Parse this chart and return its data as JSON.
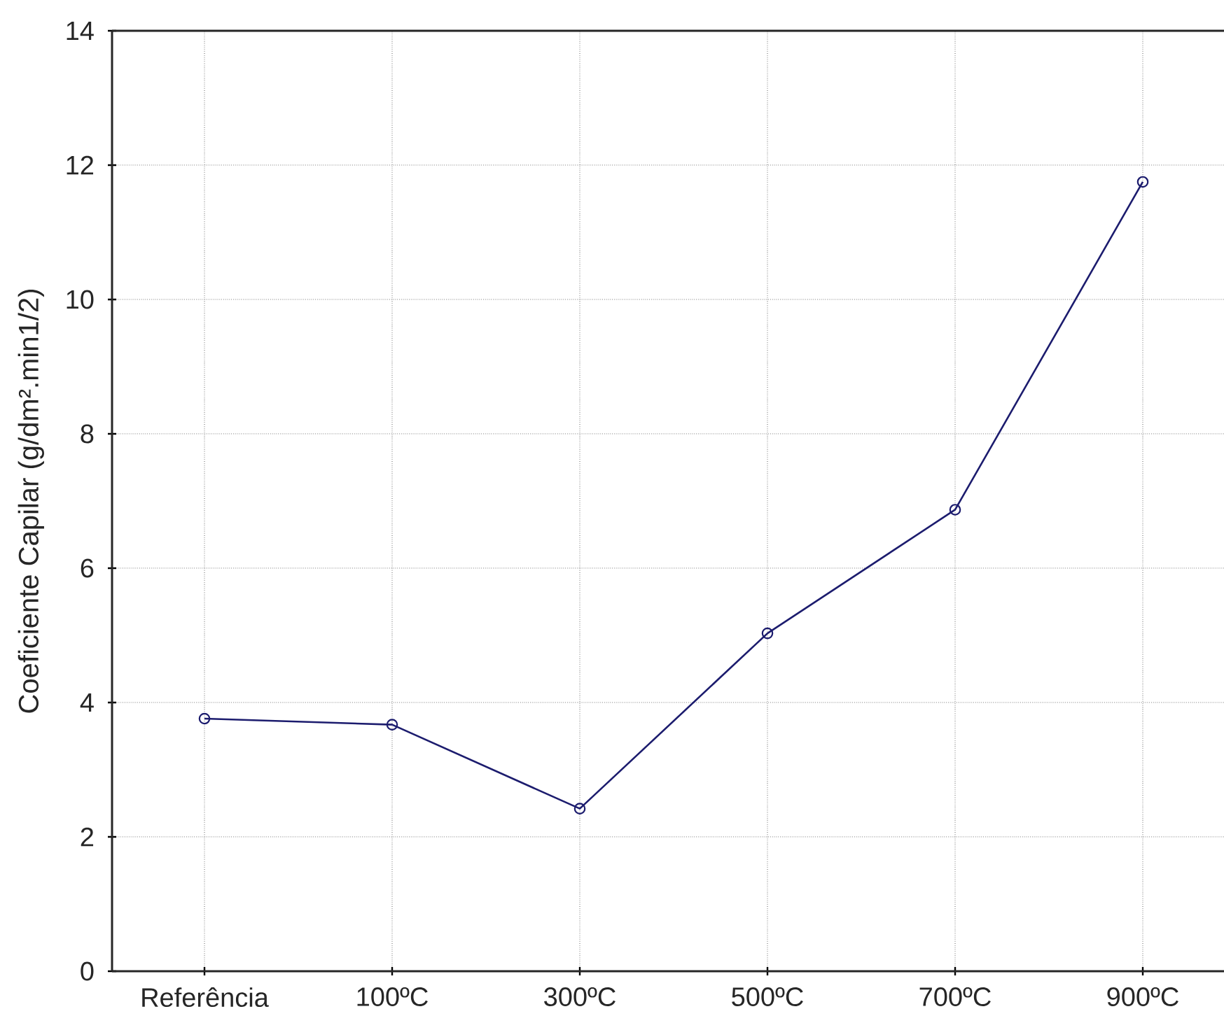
{
  "chart_data": {
    "type": "line",
    "ylabel": "Coeficiente Capilar (g/dm².min1/2)",
    "categories": [
      "Referência",
      "100ºC",
      "300ºC",
      "500ºC",
      "700ºC",
      "900ºC"
    ],
    "series": [
      {
        "color": "#1c1c6e",
        "values": [
          3.76,
          3.67,
          2.42,
          5.03,
          6.87,
          11.75
        ]
      }
    ],
    "ylim": [
      0,
      14
    ],
    "yticks": [
      0,
      2,
      4,
      6,
      8,
      10,
      12,
      14
    ],
    "grid": true,
    "marker": "circle",
    "line_style": "solid"
  }
}
